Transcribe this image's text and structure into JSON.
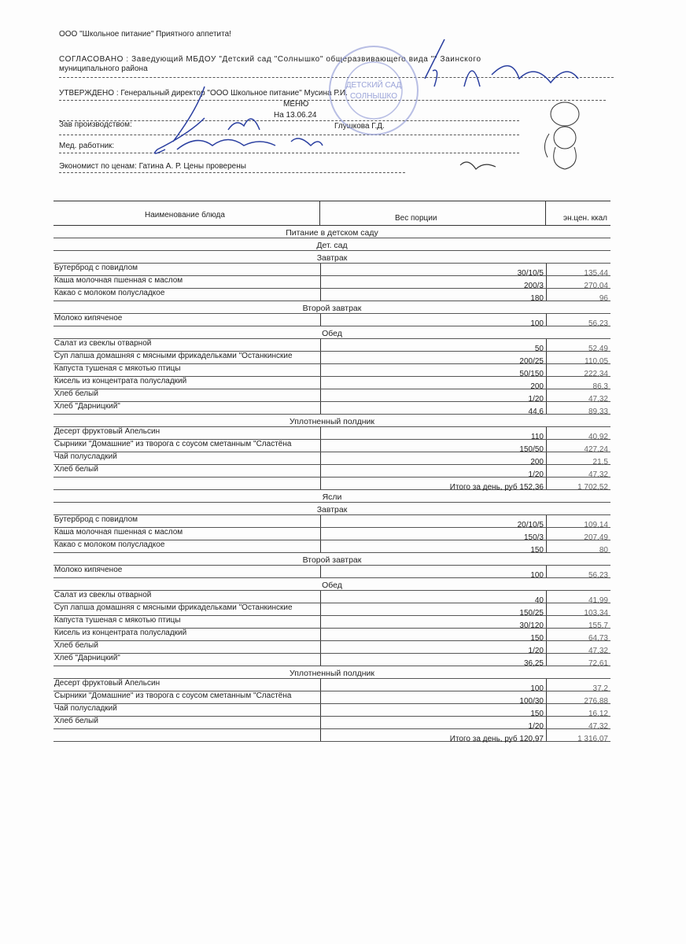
{
  "header": {
    "org_line": "ООО \"Школьное питание\" Приятного аппетита!",
    "agreed_line1": "СОГЛАСОВАНО : Заведующий МБДОУ \"Детский сад \"Солнышко\" общеразвивающего вида \"\" Заинского",
    "agreed_line2": "муниципального района",
    "approved": "УТВЕРЖДЕНО : Генеральный директор \"ООО Школьное питание\" Мусина Р.И.",
    "menu_title": "МЕНЮ",
    "menu_date": "На 13.06.24",
    "production_head_label": "Зав производством:",
    "production_head_name": "Глушкова Г.Д.",
    "medic_label": "Мед. работник:",
    "economist": "Экономист по ценам: Гатина А. Р.   Цены проверены",
    "stamp_text": "ДЕТСКИЙ САД СОЛНЫШКО"
  },
  "table": {
    "columns": [
      "Наименование блюда",
      "Вес порции",
      "эн.цен. ккал"
    ],
    "rows": [
      {
        "type": "section",
        "label": "Питание в детском саду"
      },
      {
        "type": "section",
        "label": "Дет. сад"
      },
      {
        "type": "section",
        "label": "Завтрак"
      },
      {
        "type": "item",
        "name": "Бутерброд с повидлом",
        "weight": "30/10/5",
        "kcal": "135,44"
      },
      {
        "type": "item",
        "name": "Каша молочная пшенная с маслом",
        "weight": "200/3",
        "kcal": "270,04"
      },
      {
        "type": "item",
        "name": "Какао с молоком полусладкое",
        "weight": "180",
        "kcal": "96"
      },
      {
        "type": "section",
        "label": "Второй завтрак"
      },
      {
        "type": "item",
        "name": "Молоко кипяченое",
        "weight": "100",
        "kcal": "56,23"
      },
      {
        "type": "section",
        "label": "Обед"
      },
      {
        "type": "item",
        "name": "Салат из свеклы отварной",
        "weight": "50",
        "kcal": "52,49"
      },
      {
        "type": "item",
        "name": "Суп лапша домашняя с мясными фрикадельками \"Останкинские",
        "weight": "200/25",
        "kcal": "110,05"
      },
      {
        "type": "item",
        "name": "Капуста тушеная с мякотью птицы",
        "weight": "50/150",
        "kcal": "222,34"
      },
      {
        "type": "item",
        "name": "Кисель из концентрата полусладкий",
        "weight": "200",
        "kcal": "86,3"
      },
      {
        "type": "item",
        "name": "Хлеб белый",
        "weight": "1/20",
        "kcal": "47,32"
      },
      {
        "type": "item",
        "name": "Хлеб \"Дарницкий\"",
        "weight": "44,6",
        "kcal": "89,33"
      },
      {
        "type": "section",
        "label": "Уплотненный полдник"
      },
      {
        "type": "item",
        "name": "Десерт фруктовый Апельсин",
        "weight": "110",
        "kcal": "40,92"
      },
      {
        "type": "item",
        "name": "Сырники \"Домашние\" из творога с соусом сметанным \"Сластёна",
        "weight": "150/50",
        "kcal": "427,24"
      },
      {
        "type": "item",
        "name": "Чай полусладкий",
        "weight": "200",
        "kcal": "21,5"
      },
      {
        "type": "item",
        "name": "Хлеб белый",
        "weight": "1/20",
        "kcal": "47,32"
      },
      {
        "type": "total",
        "name": "",
        "weight": "Итого за день, руб 152,36",
        "kcal": "1 702,52"
      },
      {
        "type": "section",
        "label": "Ясли"
      },
      {
        "type": "section",
        "label": "Завтрак"
      },
      {
        "type": "item",
        "name": "Бутерброд с повидлом",
        "weight": "20/10/5",
        "kcal": "109,14"
      },
      {
        "type": "item",
        "name": "Каша молочная пшенная с маслом",
        "weight": "150/3",
        "kcal": "207,49"
      },
      {
        "type": "item",
        "name": "Какао с молоком полусладкое",
        "weight": "150",
        "kcal": "80"
      },
      {
        "type": "section",
        "label": "Второй завтрак"
      },
      {
        "type": "item",
        "name": "Молоко кипяченое",
        "weight": "100",
        "kcal": "56,23"
      },
      {
        "type": "section",
        "label": "Обед"
      },
      {
        "type": "item",
        "name": "Салат из свеклы отварной",
        "weight": "40",
        "kcal": "41,99"
      },
      {
        "type": "item",
        "name": "Суп лапша домашняя с мясными фрикадельками \"Останкинские",
        "weight": "150/25",
        "kcal": "103,34"
      },
      {
        "type": "item",
        "name": "Капуста тушеная с мякотью птицы",
        "weight": "30/120",
        "kcal": "155,7"
      },
      {
        "type": "item",
        "name": "Кисель из концентрата полусладкий",
        "weight": "150",
        "kcal": "64,73"
      },
      {
        "type": "item",
        "name": "Хлеб белый",
        "weight": "1/20",
        "kcal": "47,32"
      },
      {
        "type": "item",
        "name": "Хлеб \"Дарницкий\"",
        "weight": "36,25",
        "kcal": "72,61"
      },
      {
        "type": "section",
        "label": "Уплотненный полдник"
      },
      {
        "type": "item",
        "name": "Десерт фруктовый Апельсин",
        "weight": "100",
        "kcal": "37,2"
      },
      {
        "type": "item",
        "name": "Сырники \"Домашние\" из творога с соусом сметанным \"Сластёна",
        "weight": "100/30",
        "kcal": "276,88"
      },
      {
        "type": "item",
        "name": "Чай полусладкий",
        "weight": "150",
        "kcal": "16,12"
      },
      {
        "type": "item",
        "name": "Хлеб белый",
        "weight": "1/20",
        "kcal": "47,32"
      },
      {
        "type": "total",
        "name": "",
        "weight": "Итого за день, руб 120,97",
        "kcal": "1 316,07"
      }
    ]
  }
}
